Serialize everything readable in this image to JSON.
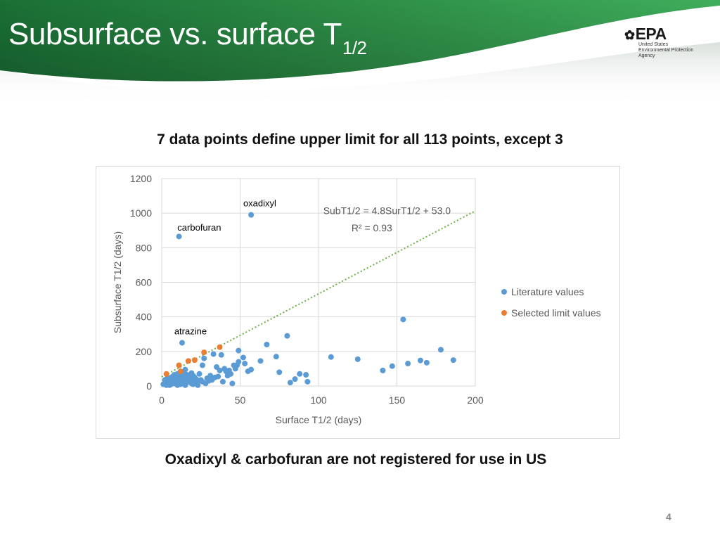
{
  "slide": {
    "title_main": "Subsurface vs. surface T",
    "title_sub": "1/2",
    "subtitle_top": "7 data points define upper limit for all 113 points, except 3",
    "subtitle_bottom": "Oxadixyl & carbofuran are not registered for use in US",
    "page_number": "4"
  },
  "logo": {
    "name": "EPA",
    "agency_lines": [
      "United States",
      "Environmental Protection",
      "Agency"
    ]
  },
  "colors": {
    "header_green_dark": "#1a6f35",
    "header_green_light": "#3aa655",
    "literature": "#5b9bd5",
    "selected": "#ed7d31",
    "trendline": "#70ad47"
  },
  "chart_data": {
    "type": "scatter",
    "xlabel": "Surface T1/2 (days)",
    "ylabel": "Subsurface T1/2 (days)",
    "xlim": [
      0,
      200
    ],
    "ylim": [
      0,
      1200
    ],
    "xticks": [
      0,
      50,
      100,
      150,
      200
    ],
    "yticks": [
      0,
      200,
      400,
      600,
      800,
      1000,
      1200
    ],
    "grid": true,
    "legend_position": "right",
    "series": [
      {
        "name": "Literature values",
        "color": "#5b9bd5",
        "points": [
          [
            57,
            990
          ],
          [
            11,
            865
          ],
          [
            154,
            385
          ],
          [
            80,
            290
          ],
          [
            13,
            250
          ],
          [
            67,
            240
          ],
          [
            49,
            205
          ],
          [
            178,
            210
          ],
          [
            33,
            185
          ],
          [
            38,
            180
          ],
          [
            73,
            170
          ],
          [
            52,
            165
          ],
          [
            108,
            168
          ],
          [
            125,
            155
          ],
          [
            186,
            150
          ],
          [
            165,
            148
          ],
          [
            169,
            135
          ],
          [
            157,
            130
          ],
          [
            147,
            115
          ],
          [
            141,
            90
          ],
          [
            27,
            160
          ],
          [
            26,
            120
          ],
          [
            49,
            140
          ],
          [
            48,
            120
          ],
          [
            46,
            120
          ],
          [
            40,
            100
          ],
          [
            35,
            110
          ],
          [
            37,
            90
          ],
          [
            43,
            90
          ],
          [
            55,
            85
          ],
          [
            57,
            95
          ],
          [
            75,
            80
          ],
          [
            88,
            70
          ],
          [
            92,
            65
          ],
          [
            85,
            40
          ],
          [
            93,
            25
          ],
          [
            82,
            20
          ],
          [
            63,
            145
          ],
          [
            30,
            30
          ],
          [
            39,
            25
          ],
          [
            45,
            15
          ],
          [
            28,
            15
          ],
          [
            3,
            5
          ],
          [
            5,
            20
          ],
          [
            6,
            10
          ],
          [
            7,
            35
          ],
          [
            8,
            15
          ],
          [
            9,
            55
          ],
          [
            10,
            25
          ],
          [
            11,
            45
          ],
          [
            12,
            10
          ],
          [
            13,
            60
          ],
          [
            14,
            30
          ],
          [
            15,
            15
          ],
          [
            16,
            50
          ],
          [
            17,
            25
          ],
          [
            18,
            65
          ],
          [
            19,
            40
          ],
          [
            20,
            10
          ],
          [
            21,
            30
          ],
          [
            22,
            15
          ],
          [
            24,
            70
          ],
          [
            25,
            35
          ],
          [
            2,
            15
          ],
          [
            4,
            45
          ],
          [
            6,
            50
          ],
          [
            8,
            30
          ],
          [
            10,
            5
          ],
          [
            12,
            35
          ],
          [
            14,
            55
          ],
          [
            16,
            20
          ],
          [
            18,
            45
          ],
          [
            20,
            60
          ],
          [
            23,
            5
          ],
          [
            1,
            10
          ],
          [
            3,
            30
          ],
          [
            5,
            5
          ],
          [
            9,
            20
          ],
          [
            11,
            60
          ],
          [
            13,
            40
          ],
          [
            15,
            5
          ],
          [
            17,
            55
          ],
          [
            19,
            15
          ],
          [
            21,
            50
          ],
          [
            22,
            40
          ],
          [
            36,
            55
          ],
          [
            41,
            85
          ],
          [
            42,
            60
          ],
          [
            47,
            100
          ],
          [
            53,
            130
          ],
          [
            44,
            70
          ],
          [
            31,
            60
          ],
          [
            34,
            50
          ],
          [
            29,
            45
          ],
          [
            32,
            35
          ],
          [
            26,
            25
          ],
          [
            7,
            55
          ],
          [
            10,
            70
          ],
          [
            12,
            75
          ],
          [
            14,
            80
          ],
          [
            16,
            65
          ],
          [
            18,
            50
          ],
          [
            19,
            75
          ],
          [
            24,
            30
          ],
          [
            20,
            25
          ],
          [
            3,
            40
          ],
          [
            4,
            25
          ],
          [
            8,
            65
          ],
          [
            6,
            15
          ],
          [
            2,
            35
          ],
          [
            15,
            95
          ]
        ]
      },
      {
        "name": "Selected limit values",
        "color": "#ed7d31",
        "points": [
          [
            3,
            70
          ],
          [
            11,
            120
          ],
          [
            12,
            85
          ],
          [
            17,
            145
          ],
          [
            21,
            150
          ],
          [
            27,
            195
          ],
          [
            37,
            225
          ]
        ]
      }
    ],
    "trendline": {
      "equation": "SubT1/2 = 4.8SurT1/2 + 53.0",
      "r_squared": "R² = 0.93",
      "slope": 4.8,
      "intercept": 53.0,
      "color": "#70ad47"
    },
    "annotations": [
      {
        "text": "oxadixyl",
        "x": 57,
        "y": 990
      },
      {
        "text": "carbofuran",
        "x": 11,
        "y": 865
      },
      {
        "text": "atrazine",
        "x": 13,
        "y": 250
      }
    ]
  }
}
